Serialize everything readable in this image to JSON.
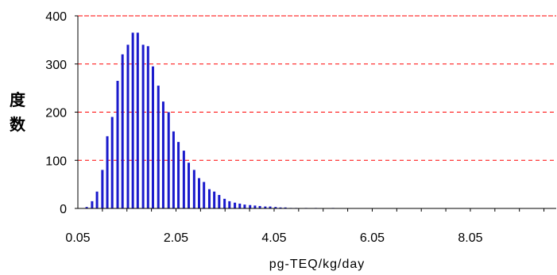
{
  "chart_data": {
    "type": "bar",
    "xlabel": "pg-TEQ/kg/day",
    "ylabel": "度数",
    "xlim": [
      0.05,
      9.8
    ],
    "ylim": [
      0,
      400
    ],
    "x_ticks": [
      0.05,
      2.05,
      4.05,
      6.05,
      8.05
    ],
    "x_tick_labels": [
      "0.05",
      "2.05",
      "4.05",
      "6.05",
      "8.05"
    ],
    "y_ticks": [
      0,
      100,
      200,
      300,
      400
    ],
    "y_tick_labels": [
      "0",
      "100",
      "200",
      "300",
      "400"
    ],
    "grid": "horizontal dashed",
    "bar_color": "#1a1acc",
    "grid_color": "#ff0000",
    "bins": [
      0.23,
      0.34,
      0.44,
      0.55,
      0.65,
      0.75,
      0.86,
      0.96,
      1.07,
      1.17,
      1.27,
      1.38,
      1.48,
      1.58,
      1.69,
      1.79,
      1.9,
      2.0,
      2.1,
      2.21,
      2.31,
      2.42,
      2.52,
      2.62,
      2.73,
      2.83,
      2.93,
      3.04,
      3.14,
      3.25,
      3.35,
      3.45,
      3.56,
      3.66,
      3.76,
      3.87,
      3.97,
      4.08,
      4.18,
      4.28,
      4.39,
      4.5,
      4.7,
      4.9,
      5.25
    ],
    "values": [
      3,
      15,
      35,
      80,
      150,
      190,
      265,
      320,
      340,
      365,
      365,
      340,
      337,
      295,
      255,
      222,
      200,
      160,
      138,
      120,
      95,
      80,
      63,
      55,
      40,
      35,
      28,
      20,
      15,
      12,
      10,
      8,
      7,
      6,
      5,
      4,
      4,
      3,
      2,
      2,
      1,
      1,
      1,
      1,
      1
    ]
  }
}
